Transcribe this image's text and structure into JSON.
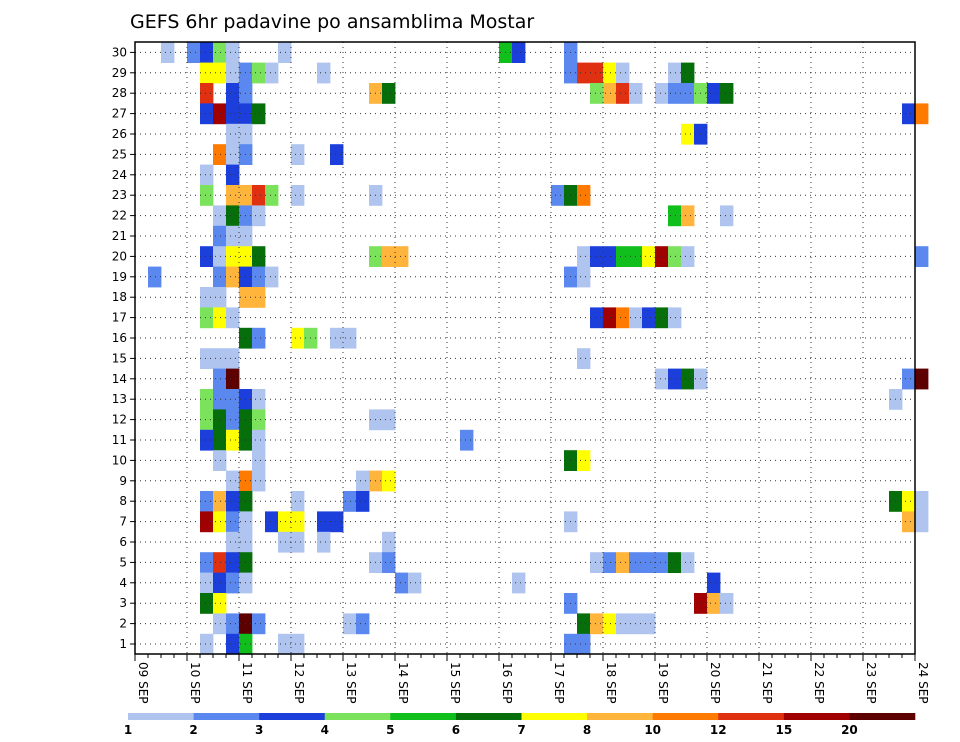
{
  "chart_data": {
    "type": "heatmap",
    "title": "GEFS 6hr padavine po ansamblima Mostar",
    "xlabel": "",
    "ylabel": "",
    "x_range": [
      "09 SEP 00Z",
      "24 SEP 00Z"
    ],
    "x_step_hours": 6,
    "x_tick_labels": [
      "09 SEP",
      "10 SEP",
      "11 SEP",
      "12 SEP",
      "13 SEP",
      "14 SEP",
      "15 SEP",
      "16 SEP",
      "17 SEP",
      "18 SEP",
      "19 SEP",
      "20 SEP",
      "21 SEP",
      "22 SEP",
      "23 SEP",
      "24 SEP"
    ],
    "y_categories": [
      1,
      2,
      3,
      4,
      5,
      6,
      7,
      8,
      9,
      10,
      11,
      12,
      13,
      14,
      15,
      16,
      17,
      18,
      19,
      20,
      21,
      22,
      23,
      24,
      25,
      26,
      27,
      28,
      29,
      30
    ],
    "grid": true,
    "legend": {
      "placement": "bottom",
      "labels": [
        "1",
        "2",
        "3",
        "4",
        "5",
        "6",
        "7",
        "8",
        "10",
        "12",
        "15",
        "20"
      ],
      "colors": [
        "#b0c4f0",
        "#5a88ef",
        "#1c3fdc",
        "#7be25c",
        "#10be1c",
        "#066e0a",
        "#ffff00",
        "#ffb43c",
        "#ff7a00",
        "#e03012",
        "#a00000",
        "#5c0000"
      ]
    },
    "cells": [
      [
        30,
        2,
        0
      ],
      [
        30,
        4,
        1
      ],
      [
        30,
        5,
        2
      ],
      [
        30,
        6,
        3
      ],
      [
        30,
        7,
        0
      ],
      [
        30,
        11,
        0
      ],
      [
        30,
        28,
        4
      ],
      [
        30,
        29,
        2
      ],
      [
        30,
        33,
        1
      ],
      [
        29,
        5,
        6
      ],
      [
        29,
        6,
        6
      ],
      [
        29,
        7,
        0
      ],
      [
        29,
        8,
        1
      ],
      [
        29,
        9,
        3
      ],
      [
        29,
        10,
        0
      ],
      [
        29,
        14,
        0
      ],
      [
        29,
        33,
        1
      ],
      [
        29,
        34,
        9
      ],
      [
        29,
        35,
        9
      ],
      [
        29,
        36,
        6
      ],
      [
        29,
        37,
        0
      ],
      [
        29,
        41,
        0
      ],
      [
        29,
        42,
        5
      ],
      [
        28,
        5,
        9
      ],
      [
        28,
        7,
        2
      ],
      [
        28,
        8,
        1
      ],
      [
        28,
        18,
        7
      ],
      [
        28,
        19,
        5
      ],
      [
        28,
        35,
        3
      ],
      [
        28,
        36,
        7
      ],
      [
        28,
        37,
        9
      ],
      [
        28,
        38,
        0
      ],
      [
        28,
        40,
        0
      ],
      [
        28,
        41,
        1
      ],
      [
        28,
        42,
        1
      ],
      [
        28,
        43,
        3
      ],
      [
        28,
        44,
        2
      ],
      [
        28,
        45,
        5
      ],
      [
        27,
        5,
        2
      ],
      [
        27,
        6,
        10
      ],
      [
        27,
        7,
        2
      ],
      [
        27,
        8,
        2
      ],
      [
        27,
        9,
        5
      ],
      [
        27,
        59,
        2
      ],
      [
        27,
        60,
        8
      ],
      [
        26,
        7,
        0
      ],
      [
        26,
        8,
        0
      ],
      [
        26,
        42,
        6
      ],
      [
        26,
        43,
        2
      ],
      [
        25,
        6,
        8
      ],
      [
        25,
        7,
        0
      ],
      [
        25,
        8,
        1
      ],
      [
        25,
        12,
        0
      ],
      [
        25,
        15,
        2
      ],
      [
        24,
        5,
        0
      ],
      [
        24,
        7,
        2
      ],
      [
        23,
        5,
        3
      ],
      [
        23,
        7,
        7
      ],
      [
        23,
        8,
        7
      ],
      [
        23,
        9,
        9
      ],
      [
        23,
        10,
        3
      ],
      [
        23,
        12,
        0
      ],
      [
        23,
        18,
        0
      ],
      [
        23,
        32,
        1
      ],
      [
        23,
        33,
        5
      ],
      [
        23,
        34,
        8
      ],
      [
        22,
        6,
        0
      ],
      [
        22,
        7,
        5
      ],
      [
        22,
        8,
        1
      ],
      [
        22,
        9,
        0
      ],
      [
        22,
        41,
        4
      ],
      [
        22,
        42,
        7
      ],
      [
        22,
        45,
        0
      ],
      [
        21,
        6,
        1
      ],
      [
        21,
        7,
        0
      ],
      [
        21,
        8,
        0
      ],
      [
        20,
        5,
        2
      ],
      [
        20,
        6,
        0
      ],
      [
        20,
        7,
        6
      ],
      [
        20,
        8,
        6
      ],
      [
        20,
        9,
        5
      ],
      [
        20,
        18,
        3
      ],
      [
        20,
        19,
        7
      ],
      [
        20,
        20,
        7
      ],
      [
        20,
        34,
        0
      ],
      [
        20,
        35,
        2
      ],
      [
        20,
        36,
        2
      ],
      [
        20,
        37,
        4
      ],
      [
        20,
        38,
        4
      ],
      [
        20,
        39,
        6
      ],
      [
        20,
        40,
        10
      ],
      [
        20,
        41,
        3
      ],
      [
        20,
        42,
        0
      ],
      [
        20,
        60,
        1
      ],
      [
        19,
        1,
        1
      ],
      [
        19,
        6,
        1
      ],
      [
        19,
        7,
        7
      ],
      [
        19,
        8,
        2
      ],
      [
        19,
        9,
        1
      ],
      [
        19,
        10,
        0
      ],
      [
        19,
        33,
        1
      ],
      [
        19,
        34,
        0
      ],
      [
        18,
        5,
        0
      ],
      [
        18,
        6,
        0
      ],
      [
        18,
        8,
        7
      ],
      [
        18,
        9,
        7
      ],
      [
        17,
        5,
        3
      ],
      [
        17,
        6,
        6
      ],
      [
        17,
        7,
        0
      ],
      [
        17,
        35,
        2
      ],
      [
        17,
        36,
        10
      ],
      [
        17,
        37,
        8
      ],
      [
        17,
        38,
        0
      ],
      [
        17,
        39,
        2
      ],
      [
        17,
        40,
        5
      ],
      [
        17,
        41,
        0
      ],
      [
        16,
        8,
        5
      ],
      [
        16,
        9,
        1
      ],
      [
        16,
        12,
        6
      ],
      [
        16,
        13,
        3
      ],
      [
        16,
        15,
        0
      ],
      [
        16,
        16,
        0
      ],
      [
        15,
        5,
        0
      ],
      [
        15,
        6,
        0
      ],
      [
        15,
        7,
        0
      ],
      [
        15,
        34,
        0
      ],
      [
        14,
        6,
        1
      ],
      [
        14,
        7,
        11
      ],
      [
        14,
        40,
        0
      ],
      [
        14,
        41,
        2
      ],
      [
        14,
        42,
        5
      ],
      [
        14,
        43,
        0
      ],
      [
        14,
        59,
        1
      ],
      [
        14,
        60,
        11
      ],
      [
        13,
        5,
        3
      ],
      [
        13,
        6,
        1
      ],
      [
        13,
        7,
        1
      ],
      [
        13,
        8,
        2
      ],
      [
        13,
        9,
        0
      ],
      [
        13,
        58,
        0
      ],
      [
        12,
        5,
        3
      ],
      [
        12,
        6,
        5
      ],
      [
        12,
        7,
        1
      ],
      [
        12,
        8,
        5
      ],
      [
        12,
        9,
        3
      ],
      [
        12,
        18,
        0
      ],
      [
        12,
        19,
        0
      ],
      [
        11,
        5,
        2
      ],
      [
        11,
        6,
        5
      ],
      [
        11,
        7,
        6
      ],
      [
        11,
        8,
        5
      ],
      [
        11,
        9,
        0
      ],
      [
        11,
        25,
        1
      ],
      [
        10,
        6,
        0
      ],
      [
        10,
        9,
        0
      ],
      [
        10,
        33,
        5
      ],
      [
        10,
        34,
        6
      ],
      [
        9,
        7,
        0
      ],
      [
        9,
        8,
        8
      ],
      [
        9,
        9,
        0
      ],
      [
        9,
        17,
        0
      ],
      [
        9,
        18,
        7
      ],
      [
        9,
        19,
        6
      ],
      [
        8,
        5,
        1
      ],
      [
        8,
        6,
        7
      ],
      [
        8,
        7,
        2
      ],
      [
        8,
        8,
        5
      ],
      [
        8,
        12,
        0
      ],
      [
        8,
        16,
        1
      ],
      [
        8,
        17,
        2
      ],
      [
        8,
        58,
        5
      ],
      [
        8,
        59,
        6
      ],
      [
        8,
        60,
        0
      ],
      [
        7,
        5,
        10
      ],
      [
        7,
        6,
        6
      ],
      [
        7,
        7,
        1
      ],
      [
        7,
        8,
        0
      ],
      [
        7,
        10,
        2
      ],
      [
        7,
        11,
        6
      ],
      [
        7,
        12,
        6
      ],
      [
        7,
        14,
        2
      ],
      [
        7,
        15,
        2
      ],
      [
        7,
        33,
        0
      ],
      [
        7,
        59,
        7
      ],
      [
        7,
        60,
        0
      ],
      [
        6,
        7,
        0
      ],
      [
        6,
        8,
        0
      ],
      [
        6,
        11,
        0
      ],
      [
        6,
        12,
        0
      ],
      [
        6,
        14,
        0
      ],
      [
        6,
        19,
        0
      ],
      [
        5,
        5,
        1
      ],
      [
        5,
        6,
        9
      ],
      [
        5,
        7,
        2
      ],
      [
        5,
        8,
        5
      ],
      [
        5,
        18,
        0
      ],
      [
        5,
        19,
        1
      ],
      [
        5,
        35,
        0
      ],
      [
        5,
        36,
        1
      ],
      [
        5,
        37,
        7
      ],
      [
        5,
        38,
        1
      ],
      [
        5,
        39,
        1
      ],
      [
        5,
        40,
        1
      ],
      [
        5,
        41,
        5
      ],
      [
        5,
        42,
        0
      ],
      [
        4,
        5,
        0
      ],
      [
        4,
        6,
        2
      ],
      [
        4,
        7,
        1
      ],
      [
        4,
        8,
        0
      ],
      [
        4,
        20,
        1
      ],
      [
        4,
        21,
        0
      ],
      [
        4,
        29,
        0
      ],
      [
        4,
        44,
        2
      ],
      [
        3,
        5,
        5
      ],
      [
        3,
        6,
        6
      ],
      [
        3,
        33,
        1
      ],
      [
        3,
        43,
        10
      ],
      [
        3,
        44,
        7
      ],
      [
        3,
        45,
        0
      ],
      [
        2,
        6,
        0
      ],
      [
        2,
        7,
        1
      ],
      [
        2,
        8,
        11
      ],
      [
        2,
        9,
        1
      ],
      [
        2,
        16,
        0
      ],
      [
        2,
        17,
        1
      ],
      [
        2,
        34,
        5
      ],
      [
        2,
        35,
        7
      ],
      [
        2,
        36,
        6
      ],
      [
        2,
        37,
        0
      ],
      [
        2,
        38,
        0
      ],
      [
        2,
        39,
        0
      ],
      [
        1,
        5,
        0
      ],
      [
        1,
        7,
        2
      ],
      [
        1,
        8,
        4
      ],
      [
        1,
        11,
        0
      ],
      [
        1,
        12,
        0
      ],
      [
        1,
        33,
        1
      ],
      [
        1,
        34,
        1
      ]
    ]
  }
}
